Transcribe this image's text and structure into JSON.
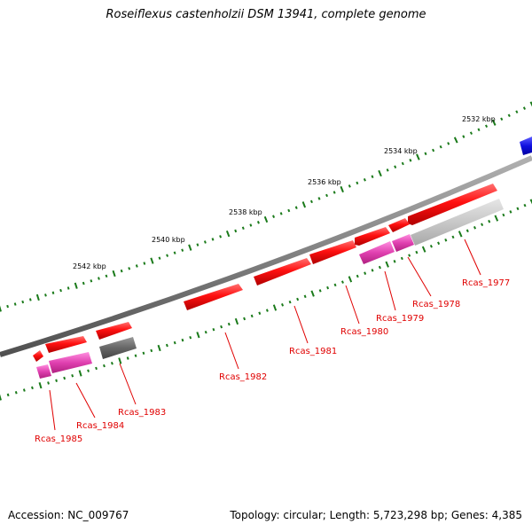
{
  "title": "Roseiflexus castenholzii DSM 13941, complete genome",
  "footer": {
    "accession": "Accession: NC_009767",
    "summary": "Topology: circular; Length: 5,723,298 bp; Genes: 4,385"
  },
  "scale_labels": [
    "2532 kbp",
    "2534 kbp",
    "2536 kbp",
    "2538 kbp",
    "2540 kbp",
    "2542 kbp"
  ],
  "gene_labels": [
    "Rcas_1977",
    "Rcas_1978",
    "Rcas_1979",
    "Rcas_1980",
    "Rcas_1981",
    "Rcas_1982",
    "Rcas_1983",
    "Rcas_1984",
    "Rcas_1985"
  ],
  "colors": {
    "backbone": "#808080",
    "tick": "#1a7a1a",
    "cds": "#ee0000",
    "cds_alt_magenta": "#e040b0",
    "cds_alt_gray": "#666666",
    "cds_alt_lightgray": "#c8c8c8",
    "cds_other": "#1010e0",
    "label": "#e00000"
  }
}
